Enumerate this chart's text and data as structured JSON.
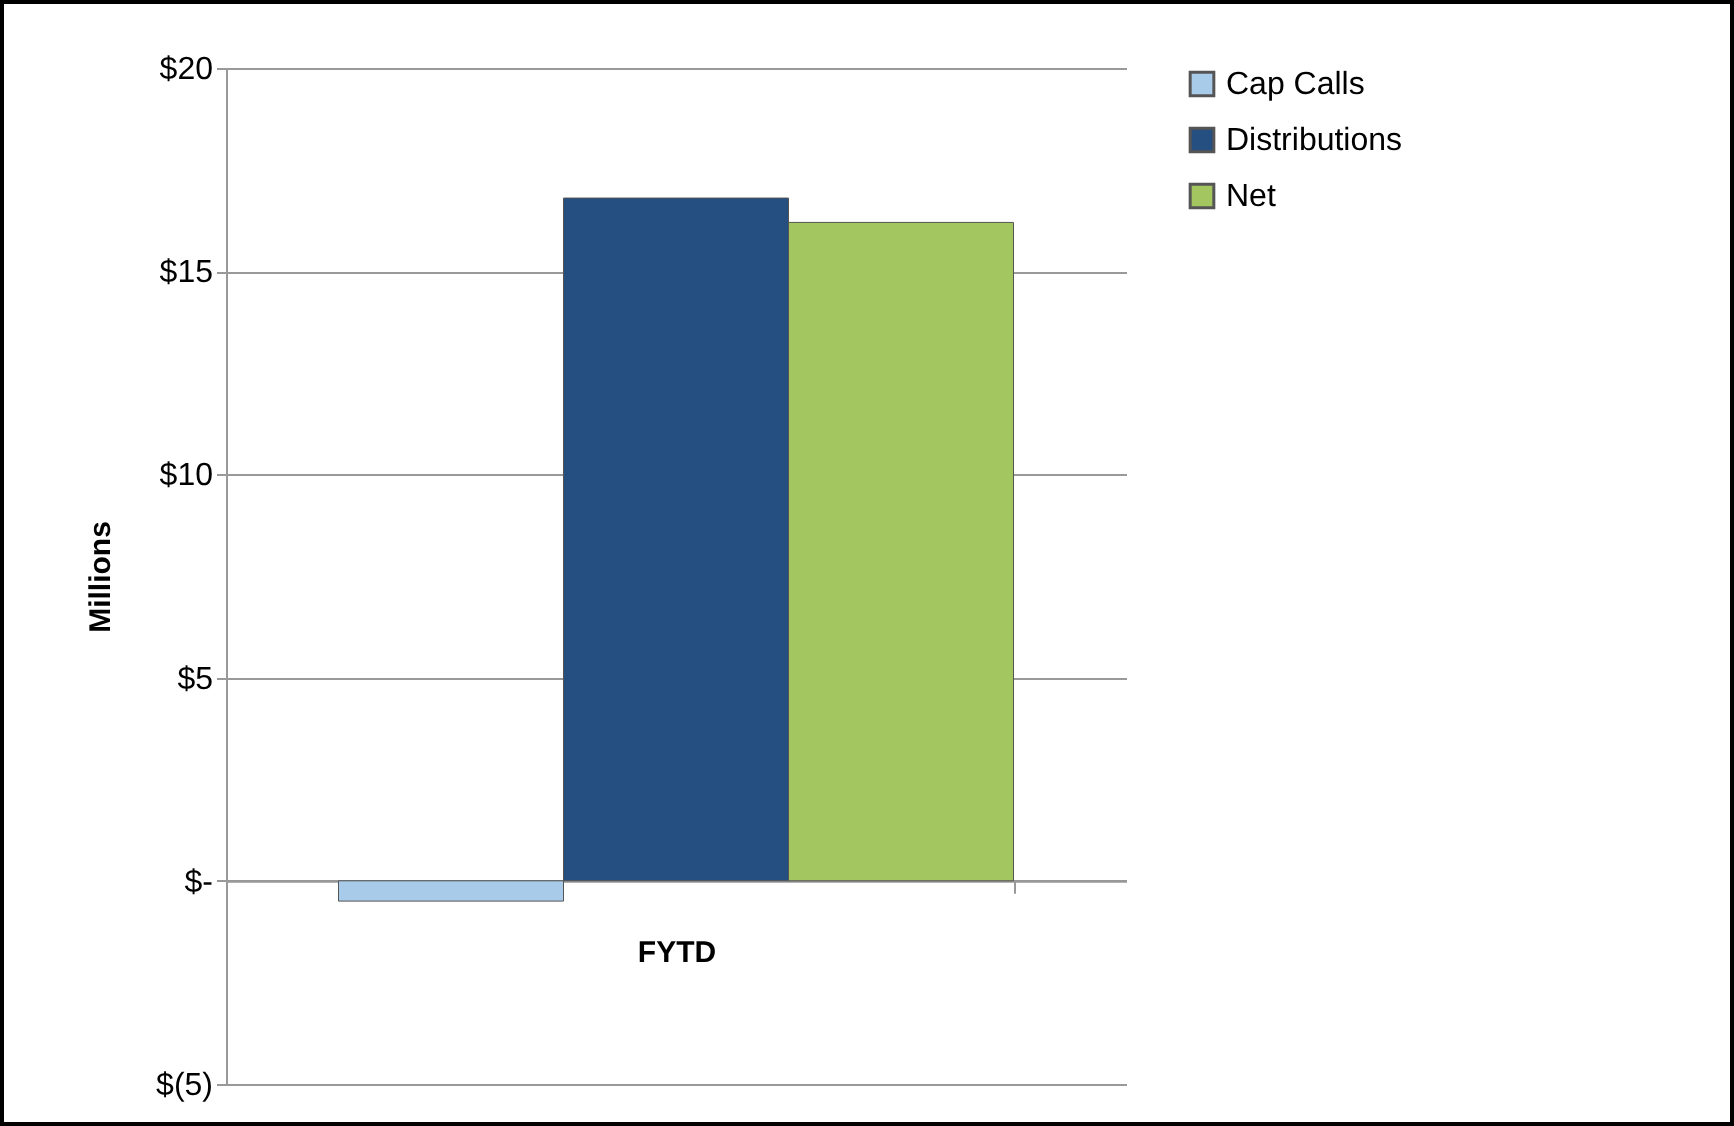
{
  "chart_data": {
    "type": "bar",
    "ylabel": "Millions",
    "categories": [
      "FYTD"
    ],
    "series": [
      {
        "name": "Cap Calls",
        "color": "#a9cbea",
        "values": [
          -0.5
        ]
      },
      {
        "name": "Distributions",
        "color": "#254f80",
        "values": [
          16.8
        ]
      },
      {
        "name": "Net",
        "color": "#a3c660",
        "values": [
          16.2
        ]
      }
    ],
    "ylim": [
      -5,
      20
    ],
    "yticks": [
      {
        "value": -5,
        "label": "$(5)"
      },
      {
        "value": 0,
        "label": "$-"
      },
      {
        "value": 5,
        "label": "$5"
      },
      {
        "value": 10,
        "label": "$10"
      },
      {
        "value": 15,
        "label": "$15"
      },
      {
        "value": 20,
        "label": "$20"
      }
    ],
    "grid": "y",
    "legend": "right"
  }
}
